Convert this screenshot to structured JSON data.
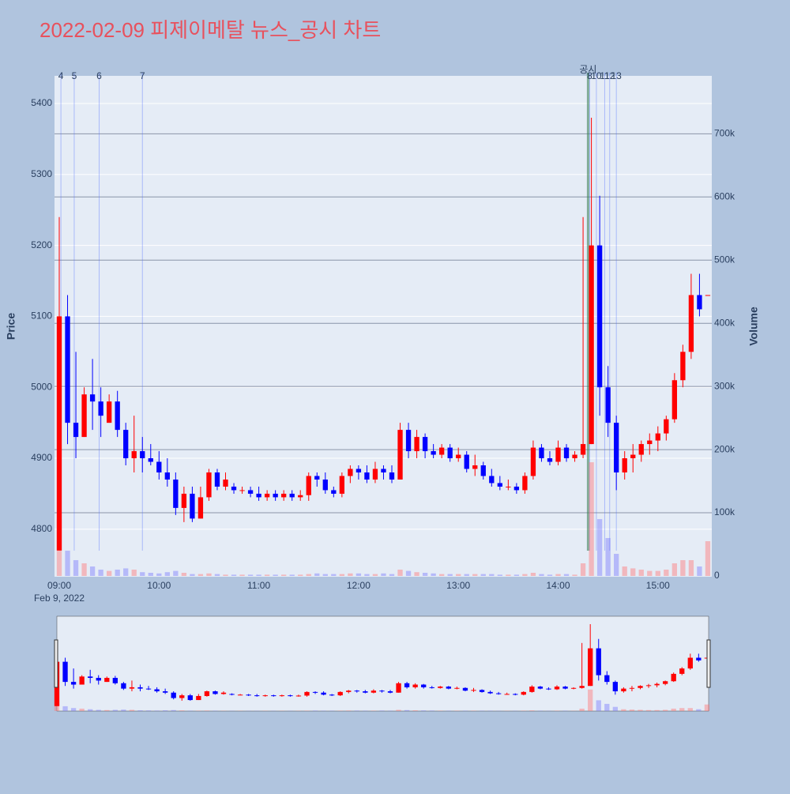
{
  "chart_data": {
    "type": "candlestick",
    "title": "2022-02-09 피제이메탈 뉴스_공시 차트",
    "ylabel": "Price",
    "y2label": "Volume",
    "date_label": "Feb 9, 2022",
    "up_color": "#ff0000",
    "down_color": "#0000ff",
    "up_volume_color": "rgba(255,120,120,0.45)",
    "down_volume_color": "rgba(110,110,255,0.4)",
    "x": [
      "09:00",
      "09:05",
      "09:10",
      "09:15",
      "09:20",
      "09:25",
      "09:30",
      "09:35",
      "09:40",
      "09:45",
      "09:50",
      "09:55",
      "10:00",
      "10:05",
      "10:10",
      "10:15",
      "10:20",
      "10:25",
      "10:30",
      "10:35",
      "10:40",
      "10:45",
      "10:50",
      "10:55",
      "11:00",
      "11:05",
      "11:10",
      "11:15",
      "11:20",
      "11:25",
      "11:30",
      "11:35",
      "11:40",
      "11:45",
      "11:50",
      "11:55",
      "12:00",
      "12:05",
      "12:10",
      "12:15",
      "12:20",
      "12:25",
      "12:30",
      "12:35",
      "12:40",
      "12:45",
      "12:50",
      "12:55",
      "13:00",
      "13:05",
      "13:10",
      "13:15",
      "13:20",
      "13:25",
      "13:30",
      "13:35",
      "13:40",
      "13:45",
      "13:50",
      "13:55",
      "14:00",
      "14:05",
      "14:10",
      "14:15",
      "14:20",
      "14:25",
      "14:30",
      "14:35",
      "14:40",
      "14:45",
      "14:50",
      "14:55",
      "15:00",
      "15:05",
      "15:10",
      "15:15",
      "15:20",
      "15:25",
      "15:30"
    ],
    "open": [
      4770,
      5100,
      4950,
      4930,
      4990,
      4980,
      4950,
      4980,
      4940,
      4900,
      4910,
      4900,
      4895,
      4880,
      4870,
      4830,
      4850,
      4815,
      4845,
      4880,
      4860,
      4860,
      4855,
      4855,
      4850,
      4845,
      4850,
      4845,
      4850,
      4845,
      4848,
      4875,
      4870,
      4855,
      4850,
      4875,
      4885,
      4880,
      4870,
      4885,
      4880,
      4870,
      4940,
      4910,
      4930,
      4910,
      4905,
      4915,
      4900,
      4905,
      4885,
      4890,
      4875,
      4865,
      4860,
      4860,
      4855,
      4875,
      4915,
      4900,
      4895,
      4915,
      4900,
      4905,
      4920,
      5200,
      5000,
      4950,
      4880,
      4900,
      4905,
      4920,
      4925,
      4935,
      4955,
      5010,
      5050,
      5130,
      5130
    ],
    "high": [
      5240,
      5130,
      5050,
      5000,
      5040,
      5000,
      4990,
      4995,
      4950,
      4960,
      4930,
      4920,
      4910,
      4900,
      4880,
      4860,
      4860,
      4860,
      4885,
      4885,
      4880,
      4865,
      4860,
      4860,
      4860,
      4855,
      4855,
      4855,
      4855,
      4855,
      4880,
      4880,
      4880,
      4860,
      4880,
      4890,
      4890,
      4890,
      4895,
      4890,
      4890,
      4950,
      4950,
      4940,
      4935,
      4920,
      4920,
      4920,
      4915,
      4910,
      4905,
      4895,
      4885,
      4875,
      4870,
      4865,
      4880,
      4925,
      4920,
      4910,
      4925,
      4920,
      4910,
      5240,
      5380,
      5270,
      5030,
      4960,
      4910,
      4920,
      4925,
      4935,
      4945,
      4960,
      5020,
      5060,
      5160,
      5160,
      5130
    ],
    "low": [
      4770,
      4920,
      4900,
      4930,
      4940,
      4930,
      4950,
      4930,
      4890,
      4880,
      4880,
      4890,
      4870,
      4860,
      4820,
      4810,
      4810,
      4815,
      4840,
      4855,
      4855,
      4850,
      4850,
      4845,
      4840,
      4840,
      4840,
      4840,
      4840,
      4840,
      4840,
      4860,
      4850,
      4845,
      4845,
      4865,
      4870,
      4865,
      4865,
      4870,
      4865,
      4870,
      4900,
      4900,
      4900,
      4900,
      4900,
      4895,
      4895,
      4880,
      4875,
      4870,
      4860,
      4855,
      4855,
      4850,
      4850,
      4870,
      4895,
      4890,
      4890,
      4895,
      4895,
      4900,
      4920,
      4960,
      4930,
      4855,
      4870,
      4880,
      4895,
      4905,
      4910,
      4925,
      4950,
      5000,
      5040,
      5100,
      5130
    ],
    "close": [
      5100,
      4950,
      4930,
      4990,
      4980,
      4960,
      4980,
      4940,
      4900,
      4910,
      4900,
      4895,
      4880,
      4870,
      4830,
      4850,
      4815,
      4845,
      4880,
      4860,
      4870,
      4855,
      4855,
      4850,
      4845,
      4850,
      4845,
      4850,
      4845,
      4848,
      4875,
      4870,
      4855,
      4850,
      4875,
      4885,
      4880,
      4870,
      4885,
      4880,
      4870,
      4940,
      4910,
      4930,
      4910,
      4905,
      4915,
      4900,
      4905,
      4885,
      4890,
      4875,
      4865,
      4860,
      4860,
      4855,
      4875,
      4915,
      4900,
      4895,
      4915,
      4900,
      4905,
      4920,
      5200,
      5000,
      4950,
      4880,
      4900,
      4905,
      4920,
      4925,
      4935,
      4955,
      5010,
      5050,
      5130,
      5110,
      5130
    ],
    "volume": [
      90000,
      40000,
      25000,
      20000,
      15000,
      10000,
      8000,
      10000,
      12000,
      10000,
      6000,
      5000,
      4000,
      6000,
      8000,
      5000,
      3000,
      3000,
      4000,
      3000,
      2000,
      2000,
      2000,
      2000,
      2000,
      2000,
      2000,
      2000,
      2000,
      2000,
      3000,
      4000,
      3000,
      3000,
      3000,
      4000,
      4000,
      3000,
      3000,
      4000,
      3000,
      10000,
      8000,
      6000,
      5000,
      4000,
      3000,
      3000,
      3000,
      3000,
      3000,
      3000,
      3000,
      2000,
      2000,
      2000,
      3000,
      5000,
      3000,
      2000,
      3000,
      3000,
      2000,
      20000,
      180000,
      90000,
      60000,
      35000,
      15000,
      12000,
      10000,
      8000,
      8000,
      10000,
      20000,
      25000,
      25000,
      15000,
      55000
    ],
    "xlim": [
      "09:00",
      "15:31"
    ],
    "xticks": [
      "09:00",
      "10:00",
      "11:00",
      "12:00",
      "13:00",
      "14:00",
      "15:00"
    ],
    "ylim": [
      4733,
      5439
    ],
    "yticks": [
      4800,
      4900,
      5000,
      5100,
      5200,
      5300,
      5400
    ],
    "y2lim": [
      0,
      793000
    ],
    "y2ticks": [
      0,
      {
        "value": 100000,
        "label": "100k"
      },
      {
        "value": 200000,
        "label": "200k"
      },
      {
        "value": 300000,
        "label": "300k"
      },
      {
        "value": 400000,
        "label": "400k"
      },
      {
        "value": 500000,
        "label": "500k"
      },
      {
        "value": 600000,
        "label": "600k"
      },
      {
        "value": 700000,
        "label": "700k"
      }
    ],
    "markers": [
      {
        "label": "4",
        "x": "09:01"
      },
      {
        "label": "5",
        "x": "09:09"
      },
      {
        "label": "6",
        "x": "09:24"
      },
      {
        "label": "7",
        "x": "09:50"
      },
      {
        "label": "공시",
        "x": "14:18"
      },
      {
        "label": "8",
        "x": "14:19"
      },
      {
        "label": "10",
        "x": "14:23"
      },
      {
        "label": "11",
        "x": "14:28"
      },
      {
        "label": "12",
        "x": "14:31"
      },
      {
        "label": "13",
        "x": "14:35"
      }
    ],
    "range_slider": true
  }
}
